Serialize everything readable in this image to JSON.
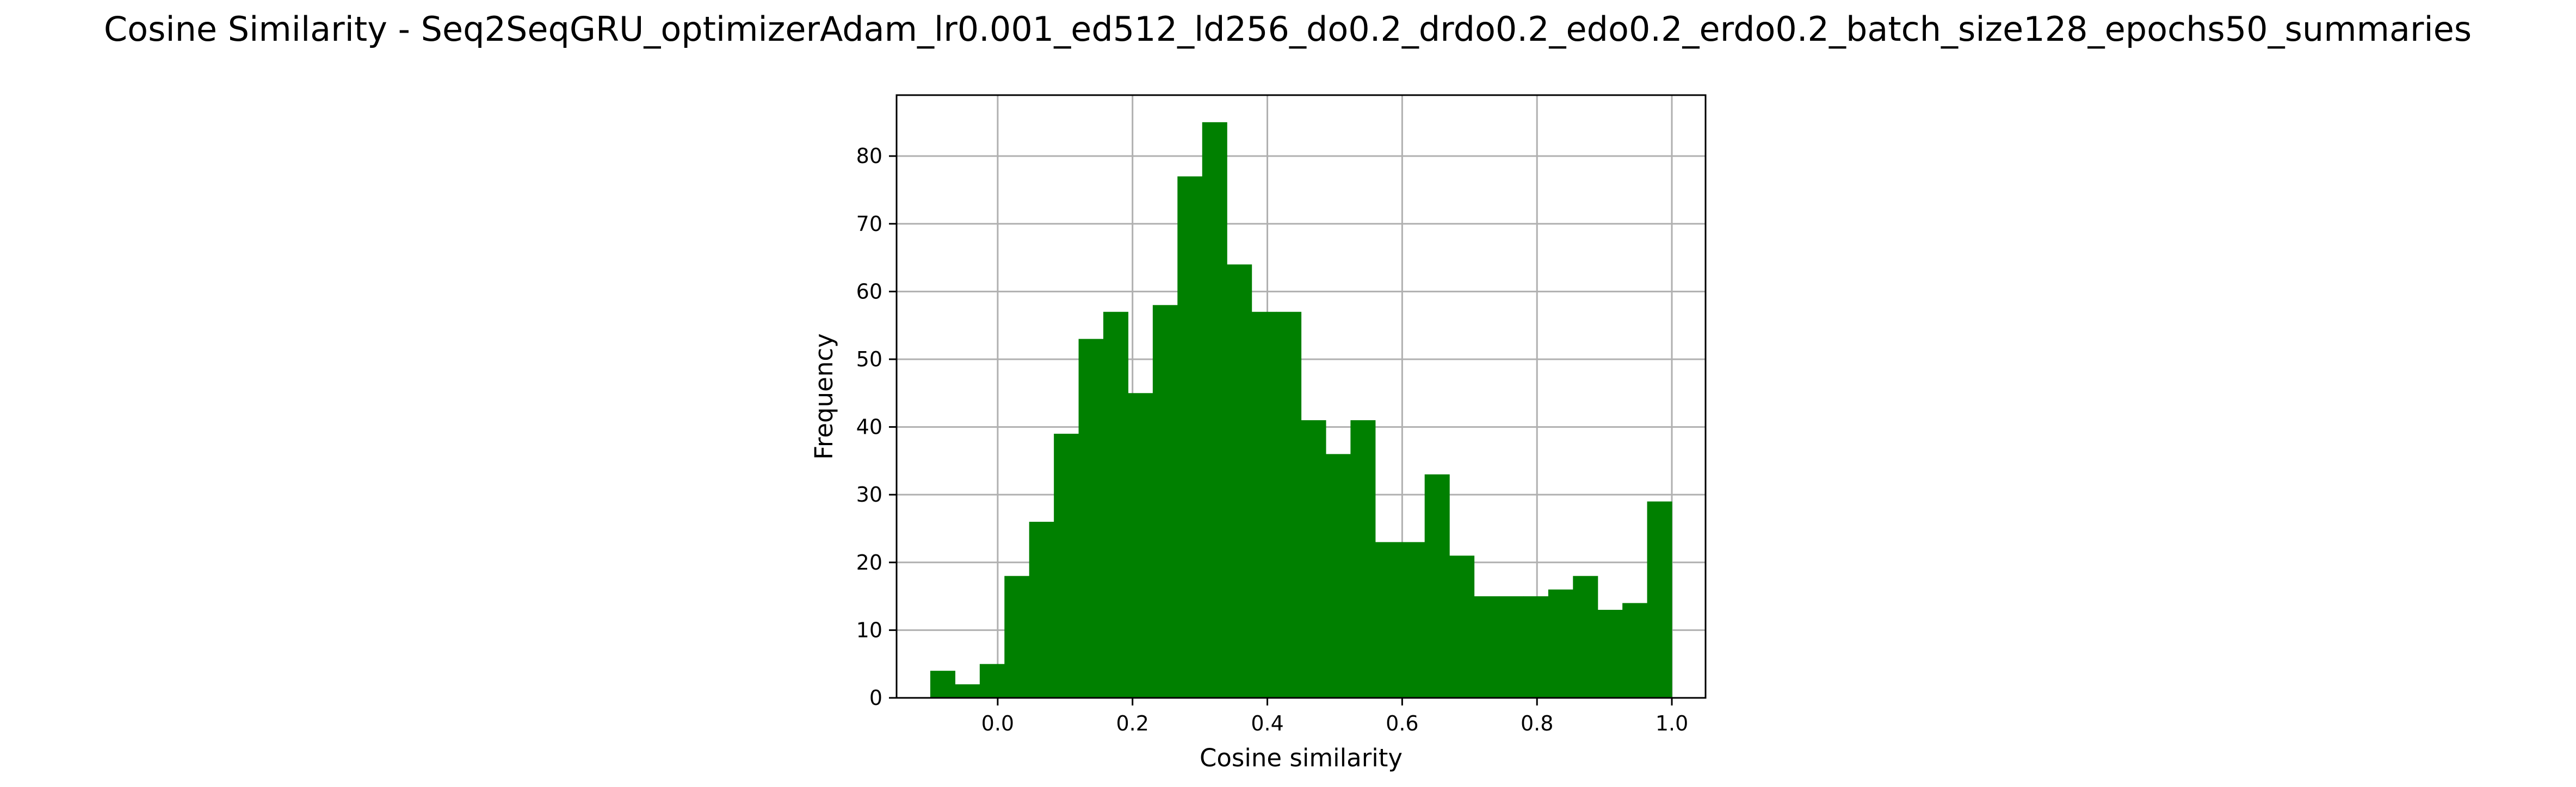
{
  "chart_data": {
    "type": "bar",
    "title": "Cosine Similarity - Seq2SeqGRU_optimizerAdam_lr0.001_ed512_ld256_do0.2_drdo0.2_edo0.2_erdo0.2_batch_size128_epochs50_summaries",
    "xlabel": "Cosine similarity",
    "ylabel": "Frequency",
    "xlim": [
      -0.15,
      1.05
    ],
    "ylim": [
      0,
      89
    ],
    "xticks": [
      0.0,
      0.2,
      0.4,
      0.6,
      0.8,
      1.0
    ],
    "xtick_labels": [
      "0.0",
      "0.2",
      "0.4",
      "0.6",
      "0.8",
      "1.0"
    ],
    "yticks": [
      0,
      10,
      20,
      30,
      40,
      50,
      60,
      70,
      80
    ],
    "ytick_labels": [
      "0",
      "10",
      "20",
      "30",
      "40",
      "50",
      "60",
      "70",
      "80"
    ],
    "grid": true,
    "bar_color": "#008000",
    "bins": {
      "start": -0.1,
      "end": 1.0,
      "values": [
        4,
        2,
        5,
        18,
        26,
        39,
        53,
        57,
        45,
        58,
        77,
        85,
        64,
        57,
        57,
        41,
        36,
        41,
        23,
        23,
        33,
        21,
        15,
        15,
        15,
        16,
        18,
        13,
        14,
        29
      ]
    }
  }
}
